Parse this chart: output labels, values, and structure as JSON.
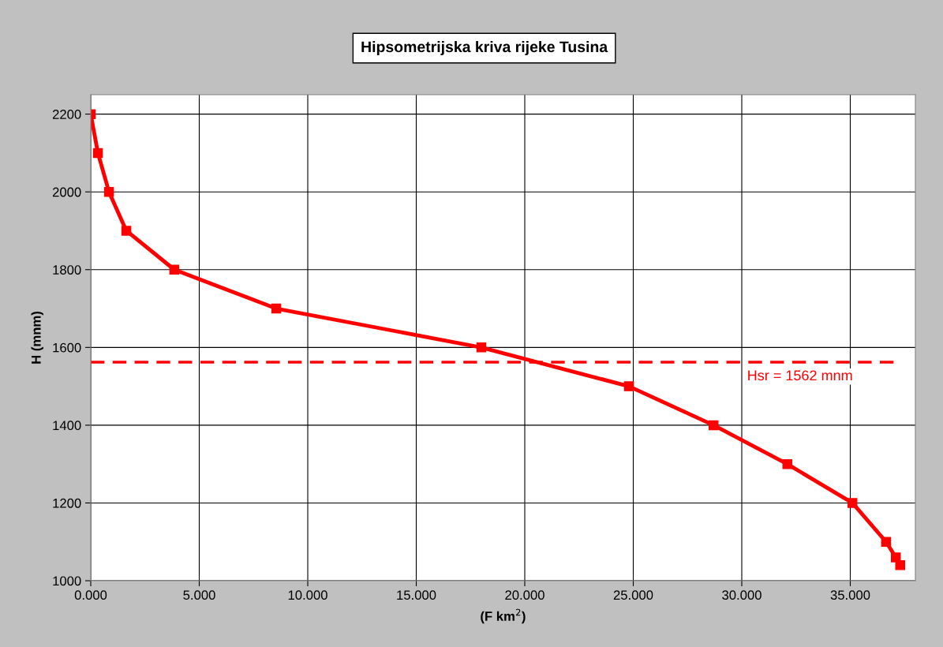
{
  "chart_data": {
    "type": "line",
    "title": "Hipsometrijska kriva rijeke Tusina",
    "xlabel": "(F km$^{2}$)",
    "ylabel": "H (mnm)",
    "x": [
      0,
      0.33,
      0.84,
      1.64,
      3.85,
      8.55,
      18.0,
      24.8,
      28.7,
      32.1,
      35.1,
      36.65,
      37.1,
      37.3
    ],
    "series": [
      {
        "color": "#ff0000",
        "values": [
          2200,
          2100,
          2000,
          1900,
          1800,
          1700,
          1600,
          1500,
          1400,
          1300,
          1200,
          1100,
          1060,
          1040
        ]
      }
    ],
    "xlim": [
      0,
      38
    ],
    "xticks": [
      {
        "value": 0,
        "label": "0.000"
      },
      {
        "value": 5,
        "label": "5.000"
      },
      {
        "value": 10,
        "label": "10.000"
      },
      {
        "value": 15,
        "label": "15.000"
      },
      {
        "value": 20,
        "label": "20.000"
      },
      {
        "value": 25,
        "label": "25.000"
      },
      {
        "value": 30,
        "label": "30.000"
      },
      {
        "value": 35,
        "label": "35.000"
      }
    ],
    "ylim": [
      1000,
      2250
    ],
    "yticks": [
      1000,
      1200,
      1400,
      1600,
      1800,
      2000,
      2200
    ],
    "ref_lines": [
      {
        "axis": "y",
        "value": 1562,
        "label": "Hsr = 1562 mnm",
        "color": "#ff0000",
        "line_style": "dashed"
      }
    ],
    "grid": true,
    "marker": "square",
    "line_style": "solid",
    "legend": false
  }
}
